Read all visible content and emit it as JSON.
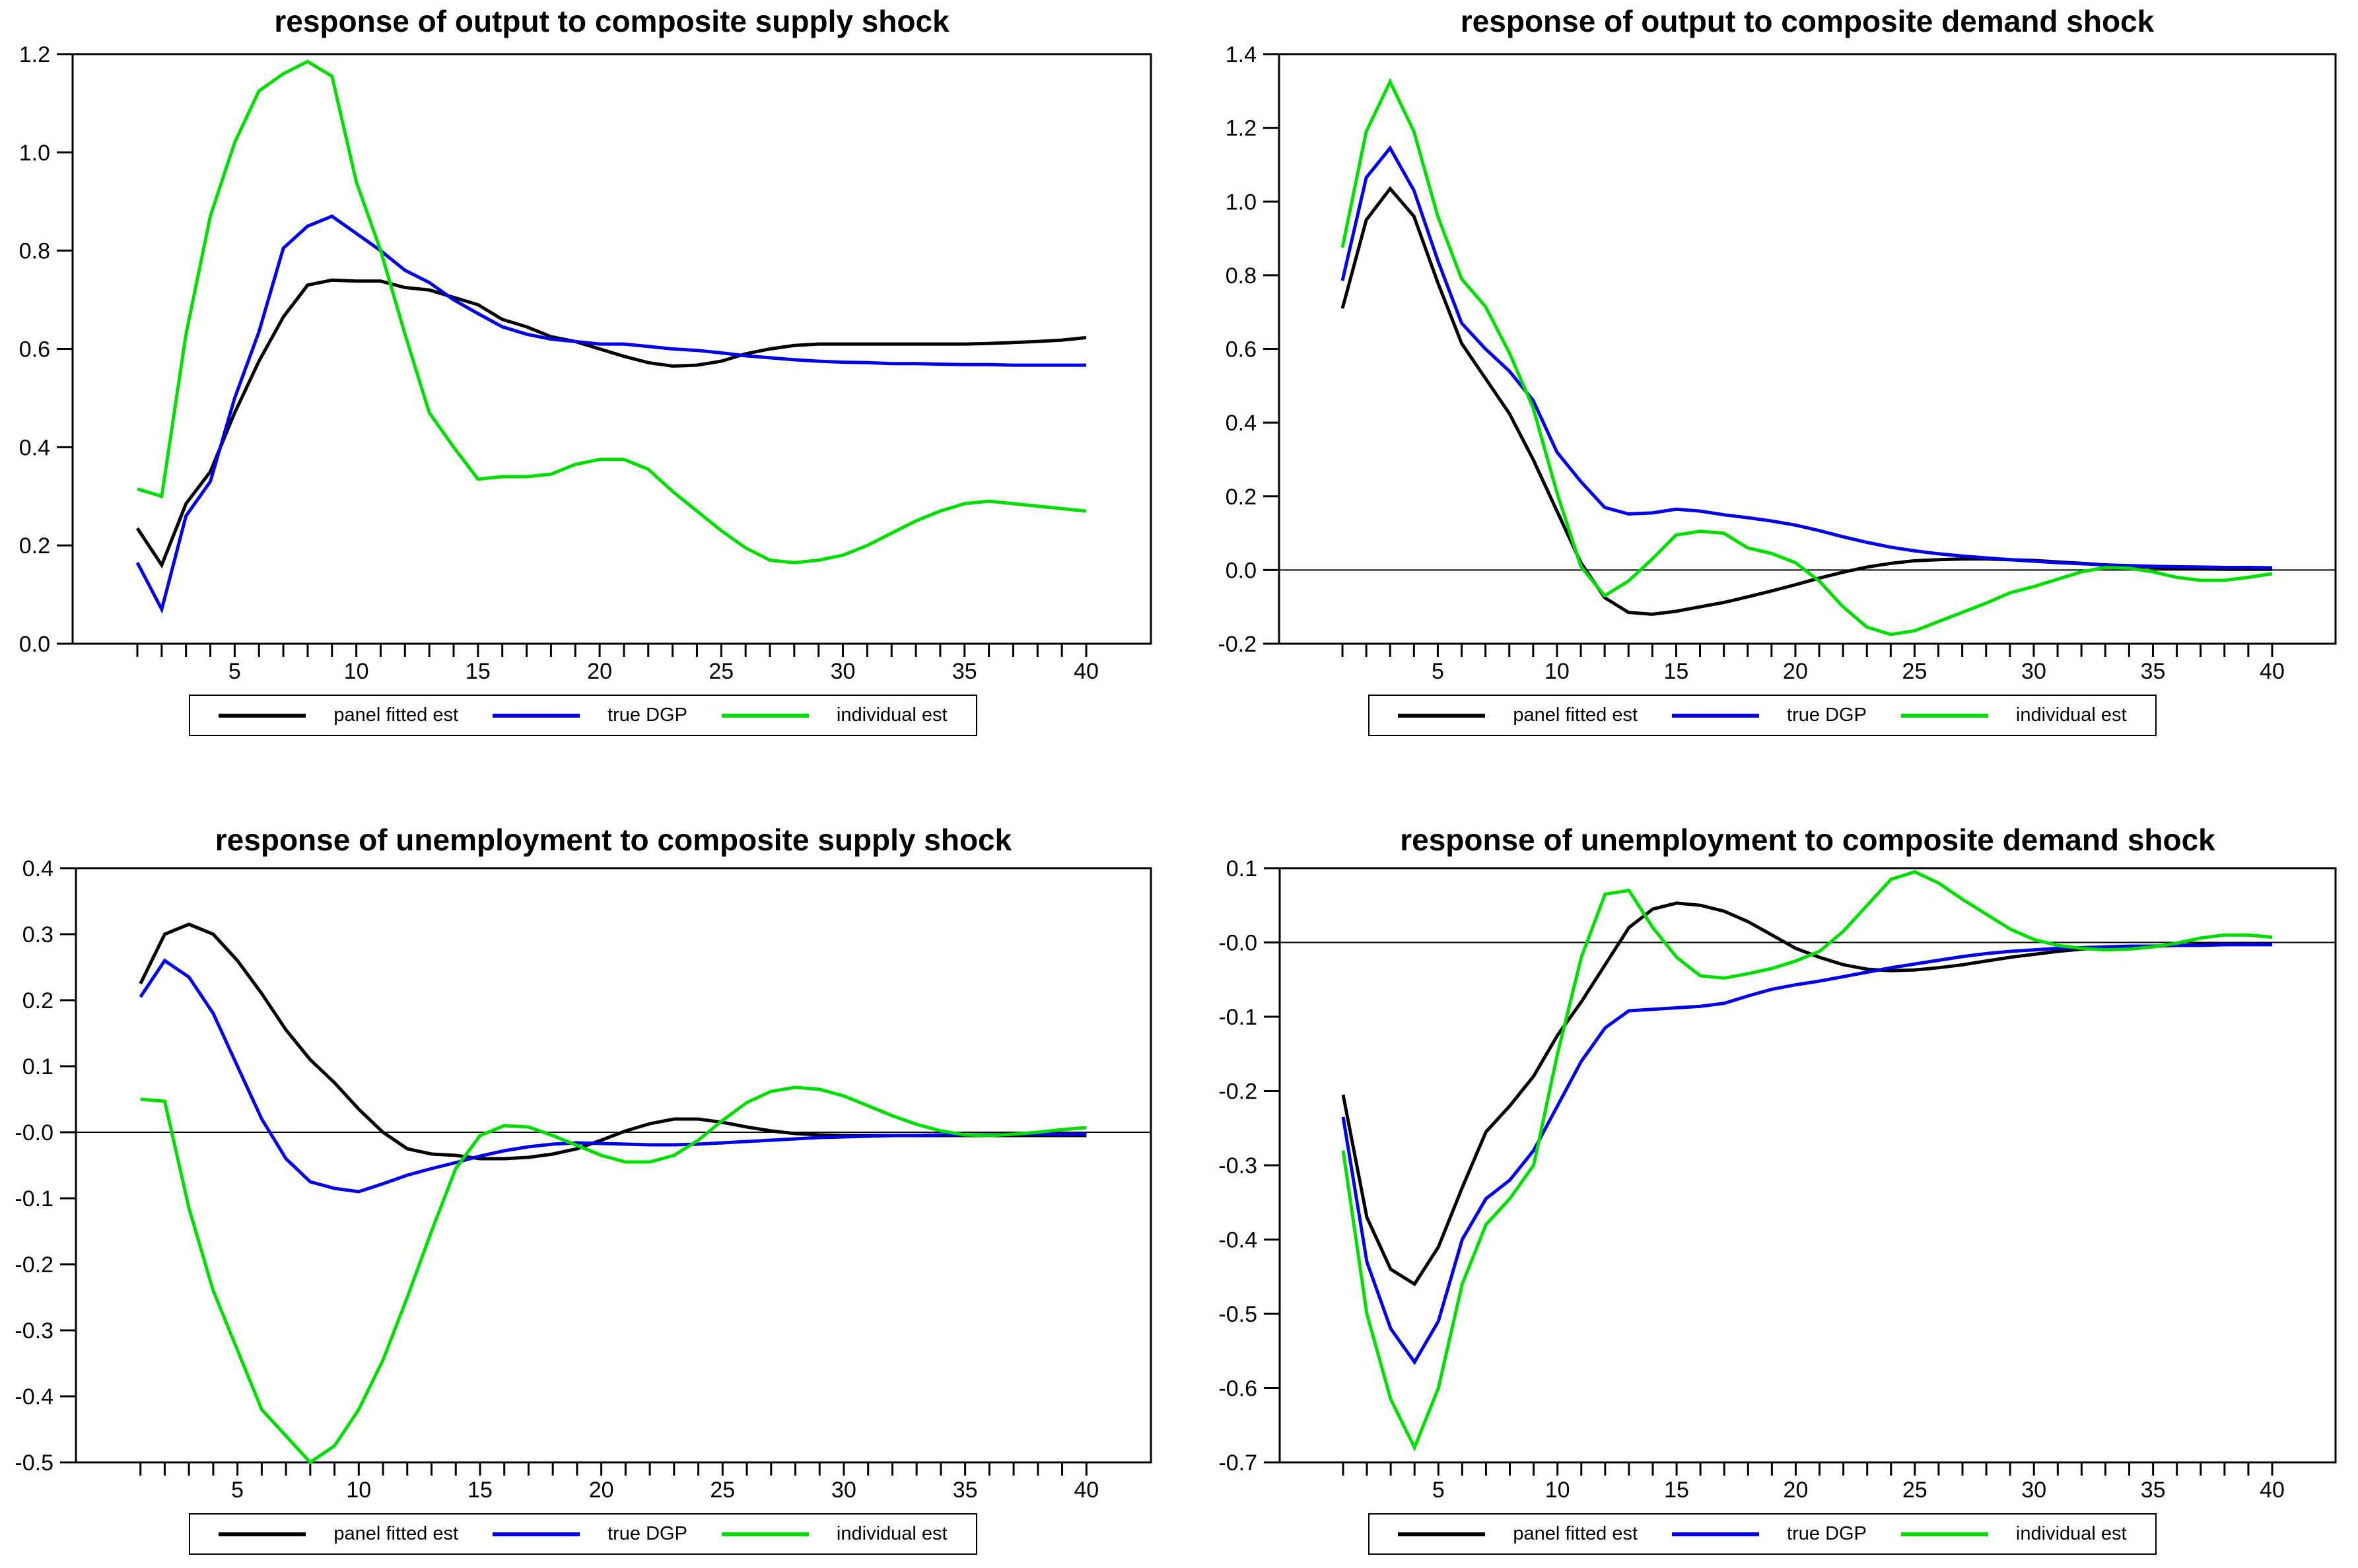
{
  "page": {
    "background": "#ffffff"
  },
  "colors": {
    "black": "#000000",
    "blue": "#0000ee",
    "green": "#00e000",
    "axis": "#000000"
  },
  "legend": {
    "entries": [
      {
        "label": "panel fitted est",
        "color": "#000000"
      },
      {
        "label": "true DGP",
        "color": "#0000ee"
      },
      {
        "label": "individual est",
        "color": "#00e000"
      }
    ]
  },
  "chart_data": [
    {
      "type": "line",
      "title": "response of output to composite supply shock",
      "xlabel": "",
      "ylabel": "",
      "x_start": 1,
      "x_end": 40,
      "xticks": [
        5,
        10,
        15,
        20,
        25,
        30,
        35,
        40
      ],
      "ylim": [
        0.0,
        1.2
      ],
      "yticks": [
        0.0,
        0.2,
        0.4,
        0.6,
        0.8,
        1.0,
        1.2
      ],
      "ytick_labels": [
        "0.0",
        "0.2",
        "0.4",
        "0.6",
        "0.8",
        "1.0",
        "1.2"
      ],
      "zero_line": false,
      "grid": false,
      "legend_position": "below",
      "series": [
        {
          "name": "panel fitted est",
          "color": "#000000",
          "values": [
            0.235,
            0.16,
            0.285,
            0.35,
            0.47,
            0.575,
            0.665,
            0.73,
            0.74,
            0.738,
            0.738,
            0.725,
            0.72,
            0.705,
            0.69,
            0.66,
            0.645,
            0.625,
            0.615,
            0.6,
            0.585,
            0.572,
            0.565,
            0.567,
            0.575,
            0.59,
            0.6,
            0.607,
            0.61,
            0.61,
            0.61,
            0.61,
            0.61,
            0.61,
            0.61,
            0.611,
            0.613,
            0.615,
            0.618,
            0.623
          ]
        },
        {
          "name": "true DGP",
          "color": "#0000ee",
          "values": [
            0.165,
            0.07,
            0.26,
            0.33,
            0.5,
            0.635,
            0.805,
            0.85,
            0.87,
            0.835,
            0.8,
            0.76,
            0.735,
            0.7,
            0.672,
            0.645,
            0.63,
            0.62,
            0.615,
            0.61,
            0.61,
            0.605,
            0.6,
            0.597,
            0.592,
            0.586,
            0.582,
            0.578,
            0.575,
            0.573,
            0.572,
            0.57,
            0.57,
            0.569,
            0.568,
            0.568,
            0.567,
            0.567,
            0.567,
            0.567
          ]
        },
        {
          "name": "individual est",
          "color": "#00e000",
          "values": [
            0.315,
            0.3,
            0.63,
            0.87,
            1.02,
            1.125,
            1.16,
            1.185,
            1.155,
            0.94,
            0.8,
            0.63,
            0.47,
            0.4,
            0.335,
            0.34,
            0.34,
            0.345,
            0.365,
            0.375,
            0.375,
            0.355,
            0.31,
            0.27,
            0.23,
            0.195,
            0.17,
            0.165,
            0.17,
            0.18,
            0.2,
            0.225,
            0.25,
            0.27,
            0.285,
            0.29,
            0.285,
            0.28,
            0.275,
            0.27
          ]
        }
      ]
    },
    {
      "type": "line",
      "title": "response of output to composite demand shock",
      "xlabel": "",
      "ylabel": "",
      "x_start": 1,
      "x_end": 40,
      "xticks": [
        5,
        10,
        15,
        20,
        25,
        30,
        35,
        40
      ],
      "ylim": [
        -0.2,
        1.4
      ],
      "yticks": [
        -0.2,
        0.0,
        0.2,
        0.4,
        0.6,
        0.8,
        1.0,
        1.2,
        1.4
      ],
      "ytick_labels": [
        "-0.2",
        "0.0",
        "0.2",
        "0.4",
        "0.6",
        "0.8",
        "1.0",
        "1.2",
        "1.4"
      ],
      "zero_line": true,
      "grid": false,
      "legend_position": "below",
      "series": [
        {
          "name": "panel fitted est",
          "color": "#000000",
          "values": [
            0.71,
            0.95,
            1.035,
            0.96,
            0.78,
            0.615,
            0.52,
            0.425,
            0.3,
            0.16,
            0.02,
            -0.075,
            -0.115,
            -0.12,
            -0.112,
            -0.1,
            -0.088,
            -0.073,
            -0.057,
            -0.04,
            -0.022,
            -0.006,
            0.008,
            0.018,
            0.025,
            0.028,
            0.03,
            0.03,
            0.028,
            0.026,
            0.022,
            0.018,
            0.014,
            0.01,
            0.007,
            0.005,
            0.003,
            0.002,
            0.002,
            0.002
          ]
        },
        {
          "name": "true DGP",
          "color": "#0000ee",
          "values": [
            0.785,
            1.065,
            1.145,
            1.03,
            0.84,
            0.67,
            0.6,
            0.54,
            0.46,
            0.32,
            0.24,
            0.17,
            0.152,
            0.155,
            0.165,
            0.16,
            0.15,
            0.142,
            0.133,
            0.122,
            0.107,
            0.09,
            0.075,
            0.062,
            0.052,
            0.044,
            0.038,
            0.033,
            0.028,
            0.024,
            0.02,
            0.017,
            0.014,
            0.012,
            0.01,
            0.009,
            0.008,
            0.007,
            0.007,
            0.006
          ]
        },
        {
          "name": "individual est",
          "color": "#00e000",
          "values": [
            0.875,
            1.19,
            1.325,
            1.19,
            0.96,
            0.79,
            0.715,
            0.59,
            0.44,
            0.21,
            0.01,
            -0.07,
            -0.03,
            0.03,
            0.095,
            0.105,
            0.1,
            0.06,
            0.045,
            0.02,
            -0.03,
            -0.1,
            -0.155,
            -0.175,
            -0.165,
            -0.14,
            -0.115,
            -0.09,
            -0.062,
            -0.045,
            -0.025,
            -0.005,
            0.007,
            0.005,
            -0.005,
            -0.02,
            -0.028,
            -0.028,
            -0.02,
            -0.01
          ]
        }
      ]
    },
    {
      "type": "line",
      "title": "response of unemployment to composite supply shock",
      "xlabel": "",
      "ylabel": "",
      "x_start": 1,
      "x_end": 40,
      "xticks": [
        5,
        10,
        15,
        20,
        25,
        30,
        35,
        40
      ],
      "ylim": [
        -0.5,
        0.4
      ],
      "yticks": [
        -0.5,
        -0.4,
        -0.3,
        -0.2,
        -0.1,
        0.0,
        0.1,
        0.2,
        0.3,
        0.4
      ],
      "ytick_labels": [
        "-0.5",
        "-0.4",
        "-0.3",
        "-0.2",
        "-0.1",
        "-0.0",
        "0.1",
        "0.2",
        "0.3",
        "0.4"
      ],
      "zero_line": true,
      "grid": false,
      "legend_position": "below",
      "series": [
        {
          "name": "panel fitted est",
          "color": "#000000",
          "values": [
            0.225,
            0.3,
            0.315,
            0.3,
            0.26,
            0.21,
            0.155,
            0.11,
            0.075,
            0.035,
            0.0,
            -0.025,
            -0.033,
            -0.035,
            -0.04,
            -0.04,
            -0.038,
            -0.033,
            -0.025,
            -0.012,
            0.002,
            0.013,
            0.02,
            0.02,
            0.015,
            0.008,
            0.002,
            -0.002,
            -0.004,
            -0.005,
            -0.005,
            -0.005,
            -0.005,
            -0.005,
            -0.005,
            -0.005,
            -0.005,
            -0.005,
            -0.005,
            -0.005
          ]
        },
        {
          "name": "true DGP",
          "color": "#0000ee",
          "values": [
            0.205,
            0.26,
            0.235,
            0.18,
            0.1,
            0.02,
            -0.04,
            -0.075,
            -0.085,
            -0.09,
            -0.078,
            -0.065,
            -0.055,
            -0.046,
            -0.036,
            -0.028,
            -0.022,
            -0.018,
            -0.016,
            -0.017,
            -0.018,
            -0.019,
            -0.019,
            -0.018,
            -0.016,
            -0.014,
            -0.012,
            -0.01,
            -0.008,
            -0.007,
            -0.006,
            -0.005,
            -0.005,
            -0.004,
            -0.004,
            -0.004,
            -0.003,
            -0.003,
            -0.003,
            -0.003
          ]
        },
        {
          "name": "individual est",
          "color": "#00e000",
          "values": [
            0.05,
            0.047,
            -0.115,
            -0.24,
            -0.33,
            -0.42,
            -0.46,
            -0.5,
            -0.475,
            -0.42,
            -0.345,
            -0.25,
            -0.15,
            -0.055,
            -0.005,
            0.01,
            0.008,
            -0.005,
            -0.02,
            -0.035,
            -0.045,
            -0.045,
            -0.035,
            -0.012,
            0.018,
            0.045,
            0.062,
            0.068,
            0.065,
            0.055,
            0.04,
            0.025,
            0.012,
            0.002,
            -0.004,
            -0.005,
            -0.003,
            0.0,
            0.004,
            0.007
          ]
        }
      ]
    },
    {
      "type": "line",
      "title": "response of unemployment to composite demand shock",
      "xlabel": "",
      "ylabel": "",
      "x_start": 1,
      "x_end": 40,
      "xticks": [
        5,
        10,
        15,
        20,
        25,
        30,
        35,
        40
      ],
      "ylim": [
        -0.7,
        0.1
      ],
      "yticks": [
        -0.7,
        -0.6,
        -0.5,
        -0.4,
        -0.3,
        -0.2,
        -0.1,
        0.0,
        0.1
      ],
      "ytick_labels": [
        "-0.7",
        "-0.6",
        "-0.5",
        "-0.4",
        "-0.3",
        "-0.2",
        "-0.1",
        "-0.0",
        "0.1"
      ],
      "zero_line": true,
      "grid": false,
      "legend_position": "below",
      "series": [
        {
          "name": "panel fitted est",
          "color": "#000000",
          "values": [
            -0.205,
            -0.37,
            -0.44,
            -0.46,
            -0.41,
            -0.33,
            -0.255,
            -0.22,
            -0.18,
            -0.125,
            -0.08,
            -0.03,
            0.02,
            0.045,
            0.053,
            0.05,
            0.042,
            0.028,
            0.01,
            -0.008,
            -0.02,
            -0.03,
            -0.036,
            -0.038,
            -0.037,
            -0.034,
            -0.03,
            -0.025,
            -0.02,
            -0.016,
            -0.012,
            -0.009,
            -0.007,
            -0.006,
            -0.005,
            -0.004,
            -0.003,
            -0.003,
            -0.002,
            -0.002
          ]
        },
        {
          "name": "true DGP",
          "color": "#0000ee",
          "values": [
            -0.235,
            -0.43,
            -0.52,
            -0.565,
            -0.51,
            -0.4,
            -0.345,
            -0.32,
            -0.28,
            -0.22,
            -0.16,
            -0.115,
            -0.092,
            -0.09,
            -0.088,
            -0.086,
            -0.082,
            -0.072,
            -0.063,
            -0.057,
            -0.052,
            -0.046,
            -0.04,
            -0.034,
            -0.029,
            -0.024,
            -0.019,
            -0.015,
            -0.012,
            -0.01,
            -0.008,
            -0.007,
            -0.006,
            -0.005,
            -0.005,
            -0.004,
            -0.004,
            -0.003,
            -0.003,
            -0.003
          ]
        },
        {
          "name": "individual est",
          "color": "#00e000",
          "values": [
            -0.28,
            -0.5,
            -0.615,
            -0.68,
            -0.6,
            -0.46,
            -0.38,
            -0.345,
            -0.3,
            -0.15,
            -0.02,
            0.065,
            0.07,
            0.02,
            -0.02,
            -0.045,
            -0.048,
            -0.042,
            -0.035,
            -0.025,
            -0.012,
            0.015,
            0.05,
            0.085,
            0.095,
            0.08,
            0.058,
            0.038,
            0.018,
            0.004,
            -0.004,
            -0.008,
            -0.01,
            -0.009,
            -0.006,
            -0.001,
            0.006,
            0.01,
            0.01,
            0.007
          ]
        }
      ]
    }
  ]
}
